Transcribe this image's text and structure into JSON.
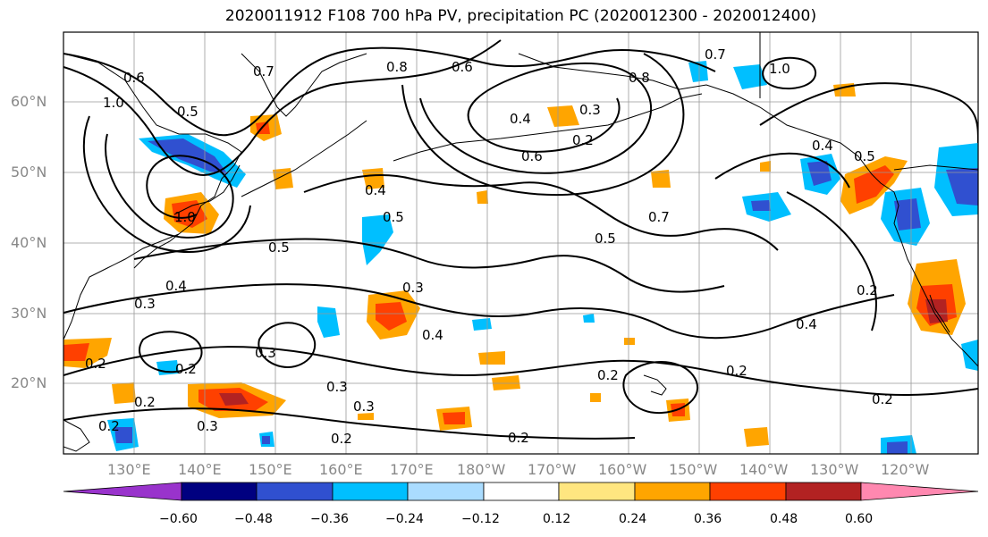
{
  "title": "2020011912 F108 700 hPa PV, precipitation PC (2020012300 - 2020012400)",
  "map": {
    "lat_labels": [
      "60°N",
      "50°N",
      "40°N",
      "30°N",
      "20°N"
    ],
    "lon_labels": [
      "130°E",
      "140°E",
      "150°E",
      "160°E",
      "170°E",
      "180°W",
      "170°W",
      "160°W",
      "150°W",
      "140°W",
      "130°W",
      "120°W"
    ],
    "contour_labels": [
      "0.6",
      "1.0",
      "0.5",
      "0.7",
      "0.8",
      "0.6",
      "0.4",
      "0.6",
      "0.8",
      "0.3",
      "0.2",
      "0.7",
      "1.0",
      "0.4",
      "0.5",
      "1.0",
      "0.4",
      "0.5",
      "0.5",
      "0.7",
      "0.5",
      "0.4",
      "0.3",
      "0.3",
      "0.4",
      "0.3",
      "0.2",
      "0.2",
      "0.3",
      "0.2",
      "0.2",
      "0.2",
      "0.2",
      "0.3",
      "0.3",
      "0.2",
      "0.2",
      "0.2",
      "0.4",
      "0.2"
    ]
  },
  "colorbar": {
    "tick_labels": [
      "−0.60",
      "−0.48",
      "−0.36",
      "−0.24",
      "−0.12",
      "0.12",
      "0.24",
      "0.36",
      "0.48",
      "0.60"
    ],
    "colors": [
      "#9933cc",
      "#000080",
      "#3050d0",
      "#00bfff",
      "#aadcff",
      "#ffffff",
      "#ffe680",
      "#ffa500",
      "#ff4000",
      "#b22222",
      "#ff88b0"
    ]
  }
}
